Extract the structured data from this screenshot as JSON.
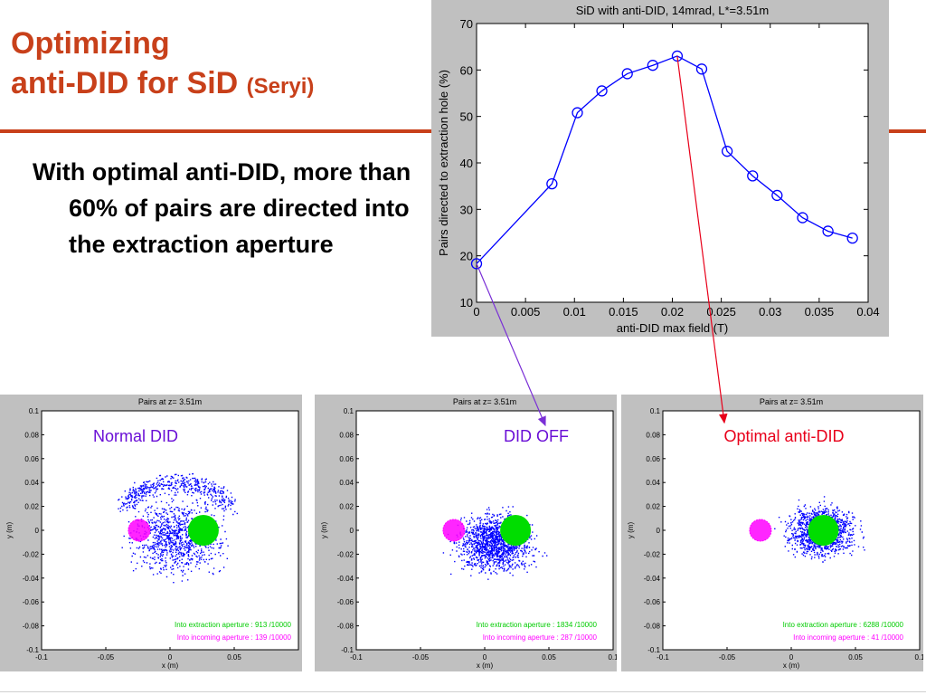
{
  "slide": {
    "title_line1": "Optimizing",
    "title_line2": "anti-DID for SiD",
    "title_author": "(Seryi)",
    "bullet": "With optimal anti-DID, more than 60% of pairs are directed into the extraction aperture",
    "accent_color": "#c8401a"
  },
  "chart_data": [
    {
      "type": "line",
      "title": "SiD with anti-DID, 14mrad, L*=3.51m",
      "xlabel": "anti-DID max field (T)",
      "ylabel": "Pairs directed to extraction hole (%)",
      "xlim": [
        0,
        0.04
      ],
      "ylim": [
        10,
        70
      ],
      "xticks": [
        "0",
        "0.005",
        "0.01",
        "0.015",
        "0.02",
        "0.025",
        "0.03",
        "0.035",
        "0.04"
      ],
      "yticks": [
        "10",
        "20",
        "30",
        "40",
        "50",
        "60",
        "70"
      ],
      "x": [
        0,
        0.0077,
        0.0103,
        0.0128,
        0.0154,
        0.018,
        0.0205,
        0.023,
        0.0256,
        0.0282,
        0.0307,
        0.0333,
        0.0359,
        0.0384
      ],
      "y": [
        18.3,
        35.5,
        50.8,
        55.5,
        59.2,
        61.0,
        63.0,
        60.2,
        42.5,
        37.2,
        33.0,
        28.2,
        25.3,
        23.8
      ],
      "line_color": "#0000ff"
    },
    {
      "type": "scatter",
      "title": "Pairs at z= 3.51m",
      "label": "Normal DID",
      "label_color": "#6a0fd6",
      "xlabel": "x (m)",
      "ylabel": "y (m)",
      "xlim": [
        -0.1,
        0.1
      ],
      "ylim": [
        -0.1,
        0.1
      ],
      "xticks": [
        "-0.1",
        "-0.05",
        "0",
        "0.05"
      ],
      "yticks": [
        "0.1",
        "0.08",
        "0.06",
        "0.04",
        "0.02",
        "0",
        "-0.02",
        "-0.04",
        "-0.06",
        "-0.08",
        "-0.1"
      ],
      "extraction_text": "Into extraction aperture : 913 /10000",
      "incoming_text": "Into incoming aperture : 139 /10000",
      "extraction_aperture": {
        "x": 0.026,
        "y": 0.0,
        "color": "#00dd00"
      },
      "incoming_aperture": {
        "x": -0.024,
        "y": 0.0,
        "color": "#ff00ff"
      },
      "cloud": {
        "x": 0.005,
        "y": -0.005,
        "spread": 0.045,
        "arc": true
      }
    },
    {
      "type": "scatter",
      "title": "Pairs at z= 3.51m",
      "label": "DID OFF",
      "label_color": "#6a0fd6",
      "xlabel": "x (m)",
      "ylabel": "y (m)",
      "xlim": [
        -0.1,
        0.1
      ],
      "ylim": [
        -0.1,
        0.1
      ],
      "xticks": [
        "-0.1",
        "-0.05",
        "0",
        "0.05",
        "0.1"
      ],
      "yticks": [
        "0.1",
        "0.08",
        "0.06",
        "0.04",
        "0.02",
        "0",
        "-0.02",
        "-0.04",
        "-0.06",
        "-0.08",
        "-0.1"
      ],
      "extraction_text": "Into extraction aperture : 1834 /10000",
      "incoming_text": "Into incoming aperture : 287 /10000",
      "extraction_aperture": {
        "x": 0.024,
        "y": 0.0,
        "color": "#00dd00"
      },
      "incoming_aperture": {
        "x": -0.024,
        "y": 0.0,
        "color": "#ff00ff"
      },
      "cloud": {
        "x": 0.008,
        "y": -0.01,
        "spread": 0.035,
        "arc": false
      }
    },
    {
      "type": "scatter",
      "title": "Pairs at z= 3.51m",
      "label": "Optimal anti-DID",
      "label_color": "#e8001a",
      "xlabel": "x (m)",
      "ylabel": "y (m)",
      "xlim": [
        -0.1,
        0.1
      ],
      "ylim": [
        -0.1,
        0.1
      ],
      "xticks": [
        "-0.1",
        "-0.05",
        "0",
        "0.05",
        "0.1"
      ],
      "yticks": [
        "0.1",
        "0.08",
        "0.06",
        "0.04",
        "0.02",
        "0",
        "-0.02",
        "-0.04",
        "-0.06",
        "-0.08",
        "-0.1"
      ],
      "extraction_text": "Into extraction aperture : 6288 /10000",
      "incoming_text": "Into incoming aperture : 41 /10000",
      "extraction_aperture": {
        "x": 0.025,
        "y": 0.0,
        "color": "#00dd00"
      },
      "incoming_aperture": {
        "x": -0.024,
        "y": 0.0,
        "color": "#ff00ff"
      },
      "cloud": {
        "x": 0.023,
        "y": 0.0,
        "spread": 0.03,
        "arc": false
      }
    }
  ]
}
